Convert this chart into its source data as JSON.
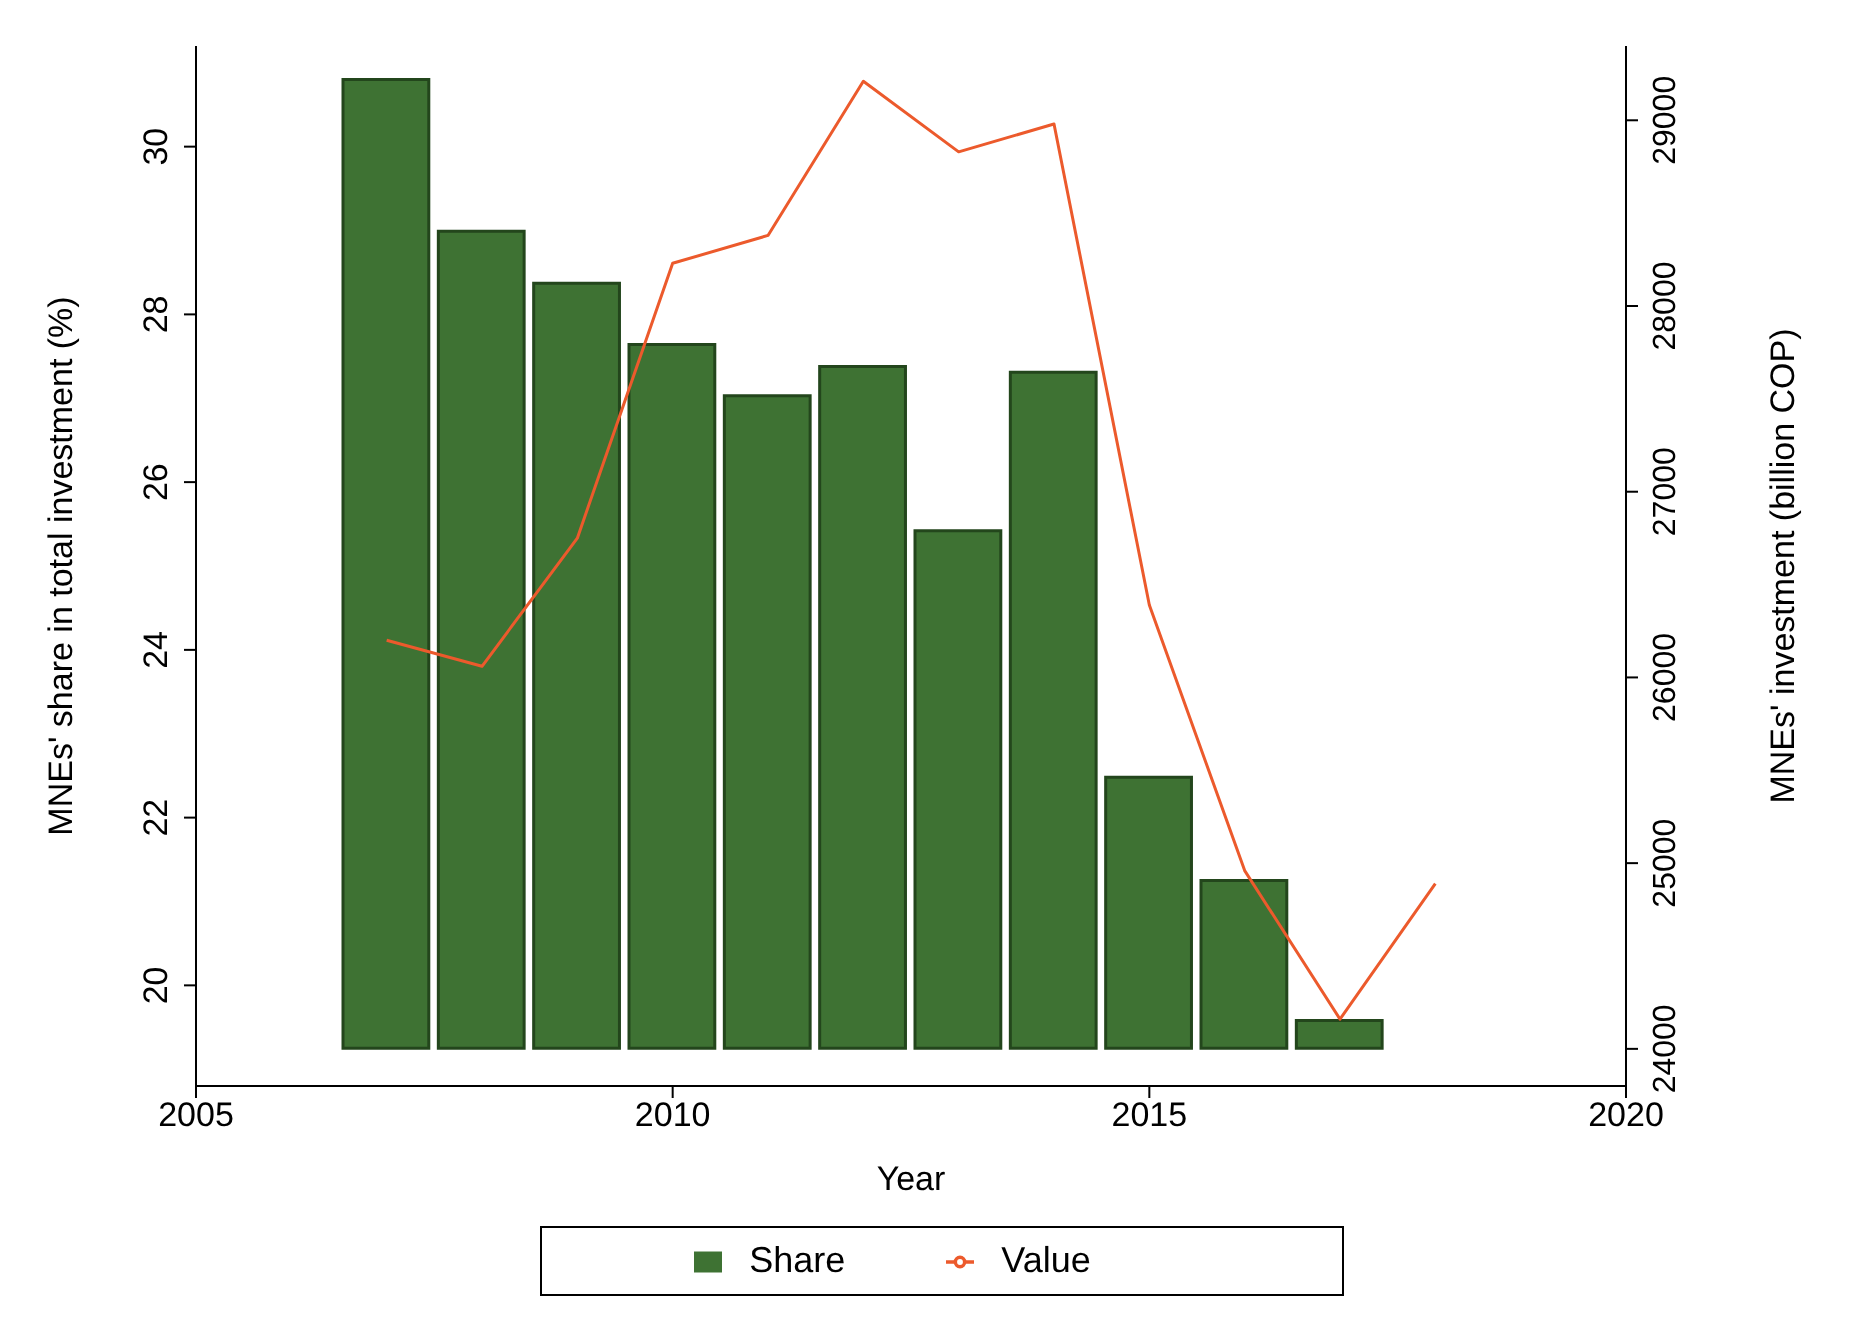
{
  "chart_data": {
    "type": "bar",
    "xlabel": "Year",
    "ylabel": "MNEs' share in total investment (%)",
    "y2label": "MNEs' investment (billion COP)",
    "x": [
      2007,
      2008,
      2009,
      2010,
      2011,
      2012,
      2013,
      2014,
      2015,
      2016,
      2017,
      2018
    ],
    "series": [
      {
        "name": "Share",
        "color": "#3e7233",
        "values": [
          11.55,
          9.74,
          9.12,
          8.39,
          7.78,
          8.13,
          6.17,
          8.06,
          3.23,
          2.0,
          0.33,
          null
        ],
        "base": [
          19.25,
          19.25,
          19.25,
          19.25,
          19.25,
          19.25,
          19.25,
          19.25,
          19.25,
          19.25,
          19.25,
          null
        ]
      },
      {
        "name": "Value",
        "type": "line",
        "axis": "y2",
        "color": "#ec5a2c",
        "values": [
          26200,
          26060,
          26750,
          28230,
          28380,
          29210,
          28830,
          28980,
          26390,
          24960,
          24160,
          24890
        ]
      }
    ],
    "xlim": [
      2005,
      2020
    ],
    "xticks": [
      2005,
      2010,
      2015,
      2020
    ],
    "ylim": [
      18.8,
      31.2
    ],
    "yticks": [
      20,
      22,
      24,
      26,
      28,
      30
    ],
    "y2lim": [
      23800,
      29400
    ],
    "y2ticks": [
      24000,
      25000,
      26000,
      27000,
      28000,
      29000
    ],
    "legend": "bottom",
    "marker": "none",
    "line_style": "solid"
  }
}
